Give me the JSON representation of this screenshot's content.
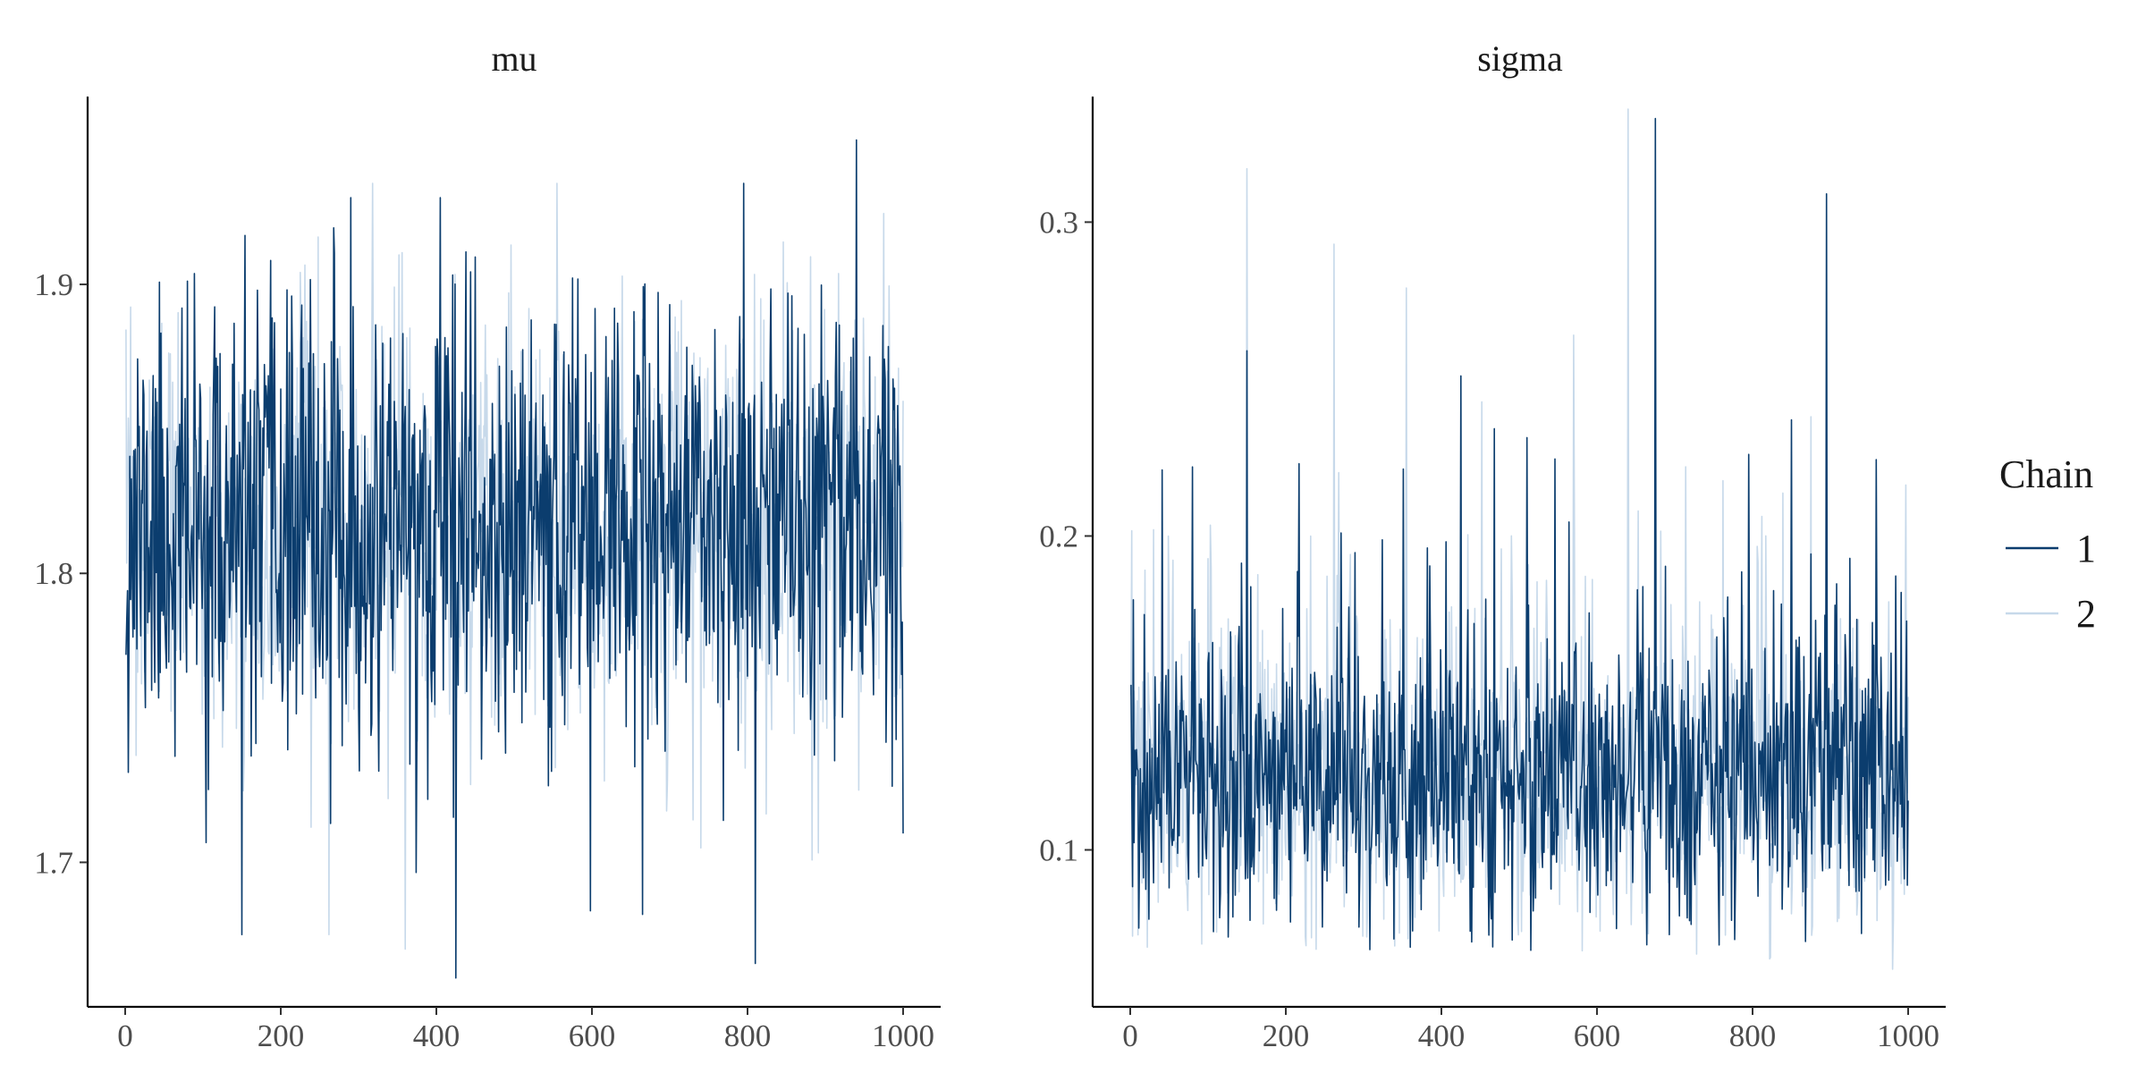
{
  "chart_data": {
    "type": "line",
    "colors": {
      "chain_1": "#0b3d6e",
      "chain_2": "#c7d9ea"
    },
    "legend": {
      "title": "Chain",
      "entries": [
        {
          "label": "1",
          "color": "#0b3d6e"
        },
        {
          "label": "2",
          "color": "#c7d9ea"
        }
      ],
      "placement": "right"
    },
    "x": {
      "range": [
        0,
        1000
      ],
      "ticks": [
        0,
        200,
        400,
        600,
        800,
        1000
      ]
    },
    "grid": false,
    "panels": [
      {
        "title": "mu",
        "ylim": [
          1.65,
          1.965
        ],
        "yticks": [
          {
            "v": 1.7,
            "label": "1.7"
          },
          {
            "v": 1.8,
            "label": "1.8"
          },
          {
            "v": 1.9,
            "label": "1.9"
          }
        ],
        "series": [
          {
            "name": "1",
            "mean": 1.815,
            "sd": 0.038,
            "seed": 11,
            "spikes": [
              [
                150,
                1.675
              ],
              [
                425,
                1.66
              ],
              [
                810,
                1.665
              ],
              [
                940,
                1.95
              ],
              [
                795,
                1.935
              ],
              [
                405,
                1.93
              ],
              [
                290,
                1.93
              ],
              [
                1000,
                1.71
              ],
              [
                665,
                1.682
              ]
            ]
          },
          {
            "name": "2",
            "mean": 1.815,
            "sd": 0.035,
            "seed": 23,
            "spikes": [
              [
                360,
                1.67
              ],
              [
                262,
                1.675
              ],
              [
                555,
                1.935
              ],
              [
                318,
                1.935
              ],
              [
                14,
                1.737
              ],
              [
                740,
                1.705
              ]
            ]
          }
        ]
      },
      {
        "title": "sigma",
        "ylim": [
          0.05,
          0.34
        ],
        "yticks": [
          {
            "v": 0.1,
            "label": "0.1"
          },
          {
            "v": 0.2,
            "label": "0.2"
          },
          {
            "v": 0.3,
            "label": "0.3"
          }
        ],
        "series": [
          {
            "name": "1",
            "mean": 0.125,
            "sd": 0.024,
            "floor": 0.068,
            "seed": 37,
            "spikes": [
              [
                675,
                0.333
              ],
              [
                895,
                0.309
              ],
              [
                150,
                0.259
              ],
              [
                425,
                0.251
              ],
              [
                850,
                0.237
              ],
              [
                795,
                0.226
              ],
              [
                80,
                0.222
              ],
              [
                360,
                0.069
              ]
            ]
          },
          {
            "name": "2",
            "mean": 0.125,
            "sd": 0.024,
            "floor": 0.065,
            "seed": 53,
            "spikes": [
              [
                640,
                0.336
              ],
              [
                150,
                0.317
              ],
              [
                262,
                0.293
              ],
              [
                355,
                0.279
              ],
              [
                570,
                0.264
              ],
              [
                875,
                0.238
              ],
              [
                30,
                0.202
              ],
              [
                980,
                0.062
              ],
              [
                22,
                0.069
              ]
            ]
          }
        ]
      }
    ]
  }
}
